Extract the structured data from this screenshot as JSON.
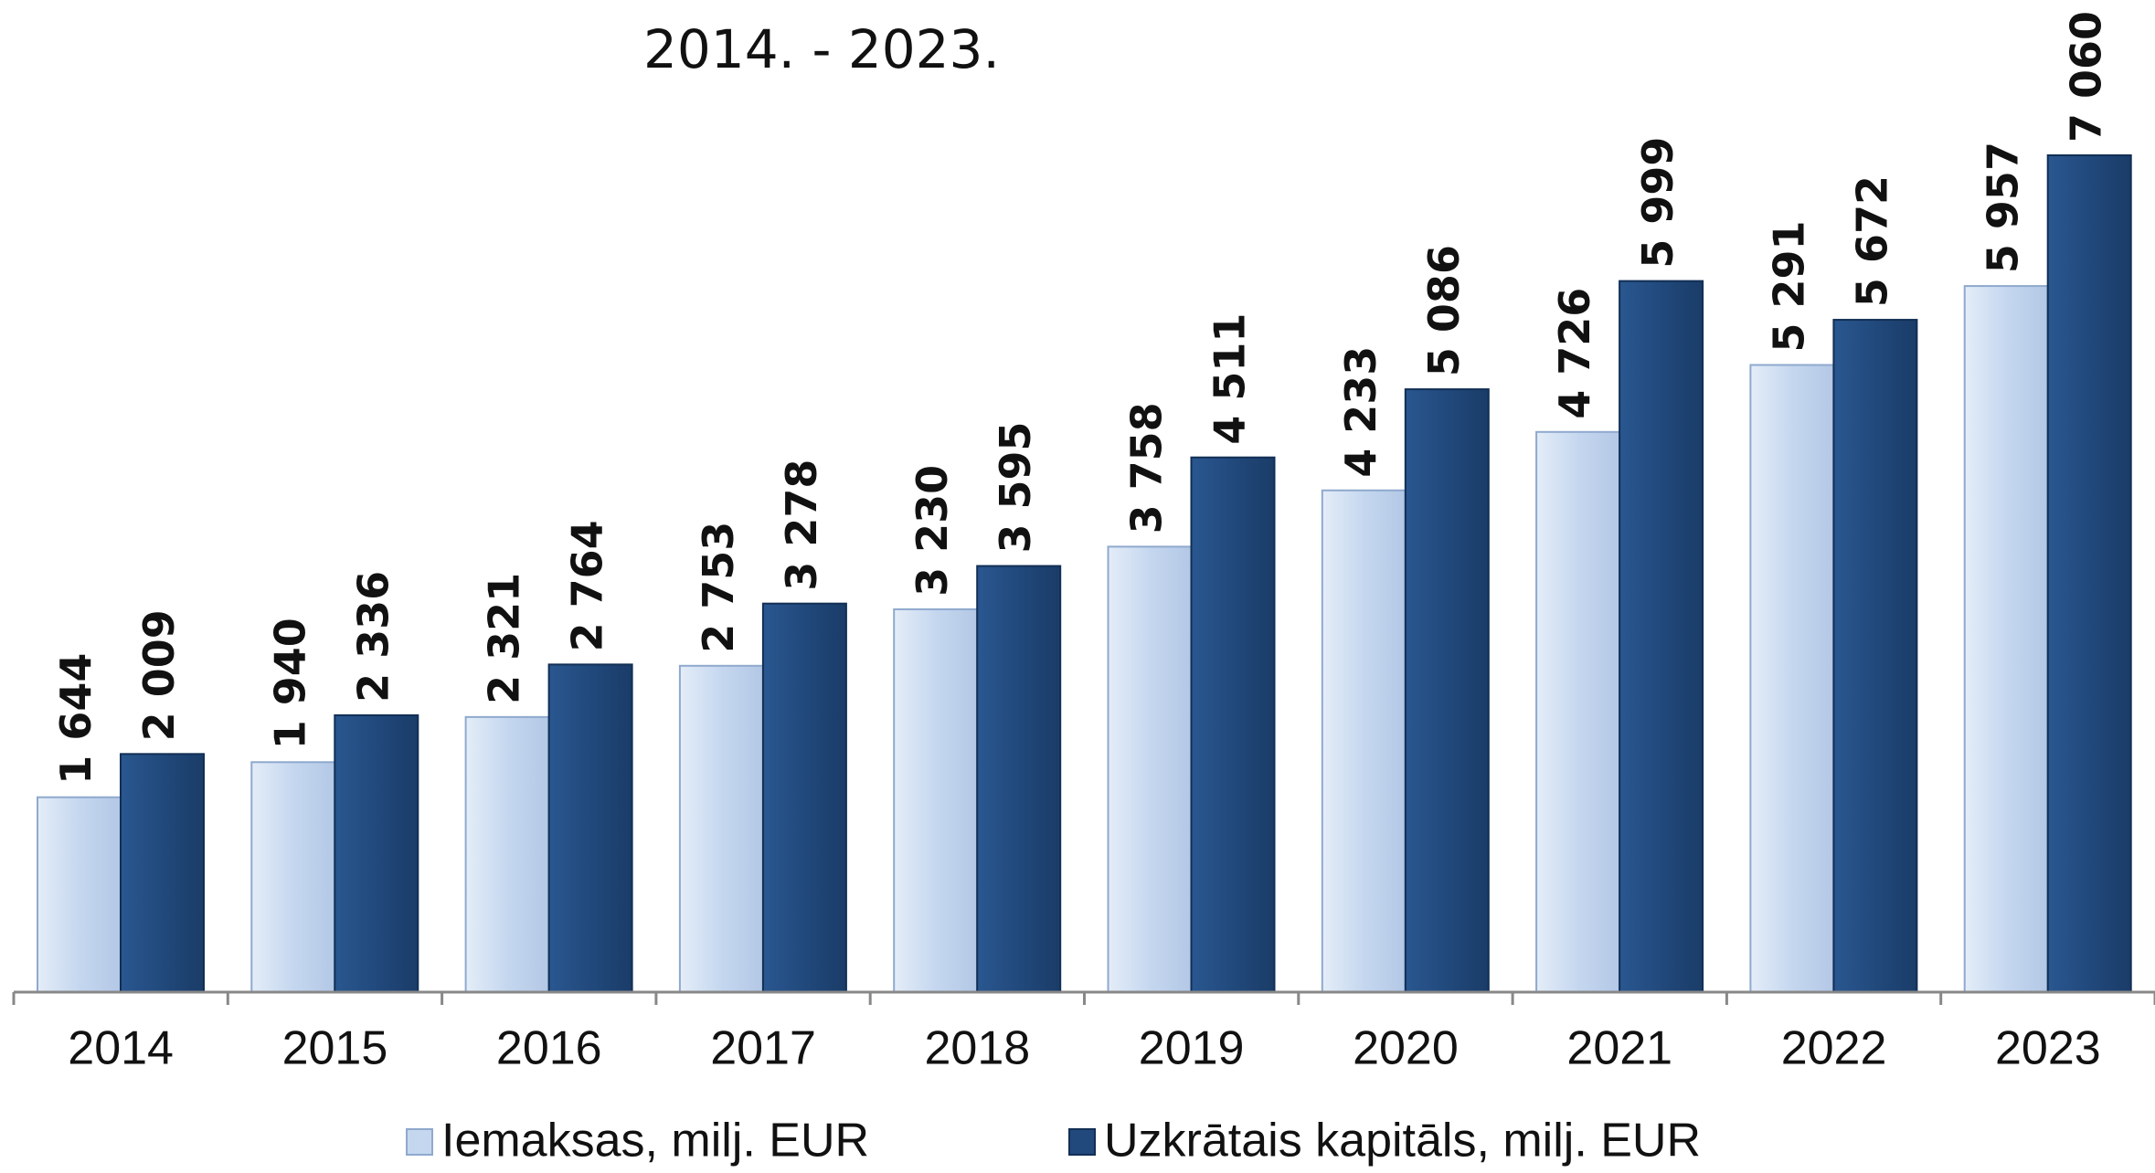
{
  "chart_data": {
    "type": "bar",
    "subtitle": "2014. - 2023.",
    "categories": [
      "2014",
      "2015",
      "2016",
      "2017",
      "2018",
      "2019",
      "2020",
      "2021",
      "2022",
      "2023"
    ],
    "series": [
      {
        "name": "Iemaksas, milj. EUR",
        "color": "#c5d7ef",
        "values": [
          1644,
          1940,
          2321,
          2753,
          3230,
          3758,
          4233,
          4726,
          5291,
          5957
        ],
        "value_labels": [
          "1 644",
          "1 940",
          "2 321",
          "2 753",
          "3 230",
          "3 758",
          "4 233",
          "4 726",
          "5 291",
          "5 957"
        ]
      },
      {
        "name": "Uzkrātais kapitāls, milj. EUR",
        "color": "#21497c",
        "values": [
          2009,
          2336,
          2764,
          3278,
          3595,
          4511,
          5086,
          5999,
          5672,
          7060
        ],
        "value_labels": [
          "2 009",
          "2 336",
          "2 764",
          "3 278",
          "3 595",
          "4 511",
          "5 086",
          "5 999",
          "5 672",
          "7 060"
        ]
      }
    ],
    "ylim": [
      0,
      8000
    ],
    "grid": false
  }
}
